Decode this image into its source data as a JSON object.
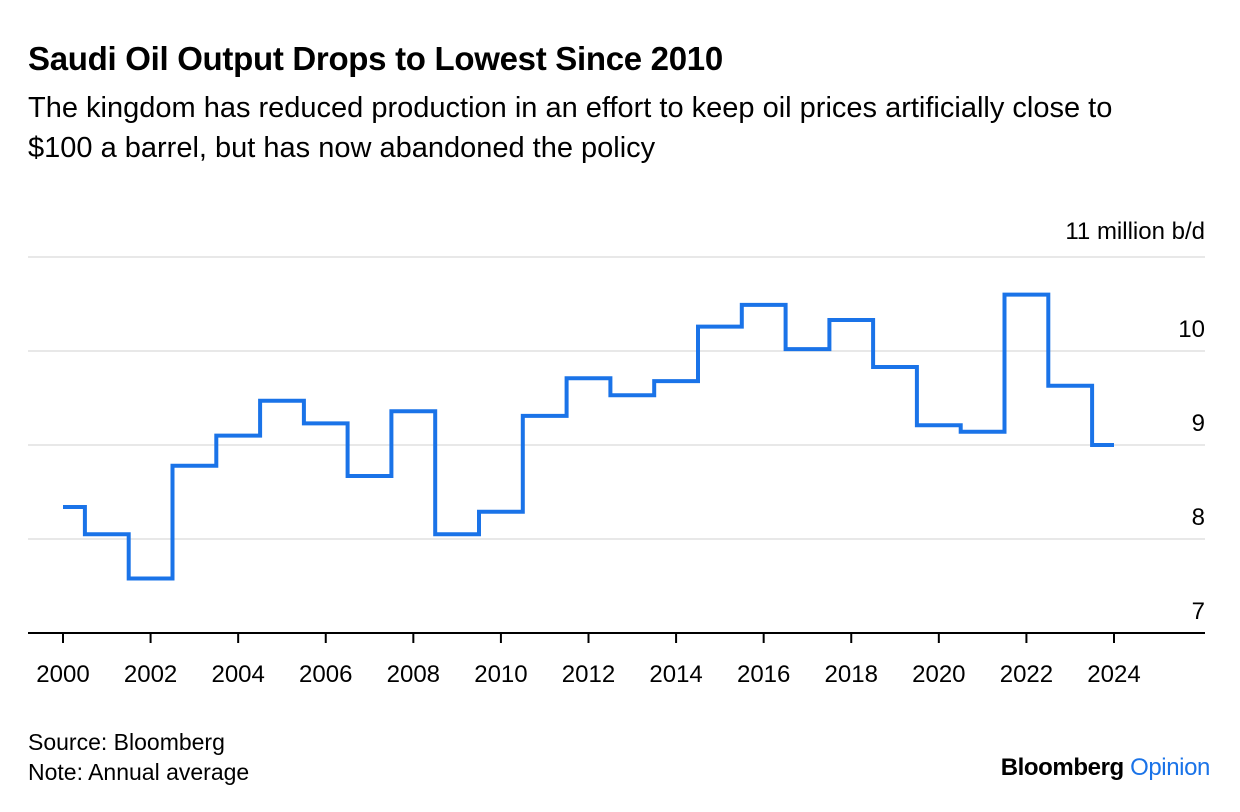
{
  "header": {
    "title": "Saudi Oil Output Drops to Lowest Since 2010",
    "subtitle": "The kingdom has reduced production in an effort to keep oil prices artificially close to $100 a barrel, but has now abandoned the policy"
  },
  "chart_data": {
    "type": "line",
    "step": true,
    "unit_label": "11 million b/d",
    "x": [
      2000,
      2001,
      2002,
      2003,
      2004,
      2005,
      2006,
      2007,
      2008,
      2009,
      2010,
      2011,
      2012,
      2013,
      2014,
      2015,
      2016,
      2017,
      2018,
      2019,
      2020,
      2021,
      2022,
      2023,
      2024
    ],
    "series": [
      {
        "values": [
          8.34,
          8.05,
          7.58,
          8.78,
          9.1,
          9.47,
          9.23,
          8.67,
          9.36,
          8.05,
          8.29,
          9.31,
          9.71,
          9.53,
          9.68,
          10.26,
          10.49,
          10.02,
          10.33,
          9.83,
          9.21,
          9.14,
          10.6,
          9.63,
          9.0
        ]
      }
    ],
    "xticks": [
      "2000",
      "2002",
      "2004",
      "2006",
      "2008",
      "2010",
      "2012",
      "2014",
      "2016",
      "2018",
      "2020",
      "2022",
      "2024"
    ],
    "yticks": [
      "7",
      "8",
      "9",
      "10"
    ],
    "ylim": [
      7,
      11
    ],
    "xlim": [
      2000,
      2024
    ],
    "grid": true,
    "colors": {
      "line": "#1a73e8",
      "grid": "#e8e8e8",
      "axis": "#000000"
    }
  },
  "footer": {
    "source": "Source: Bloomberg",
    "note": "Note: Annual average",
    "brand_bold": "Bloomberg",
    "brand_accent": "Opinion",
    "brand_accent_color": "#1a73e8"
  }
}
